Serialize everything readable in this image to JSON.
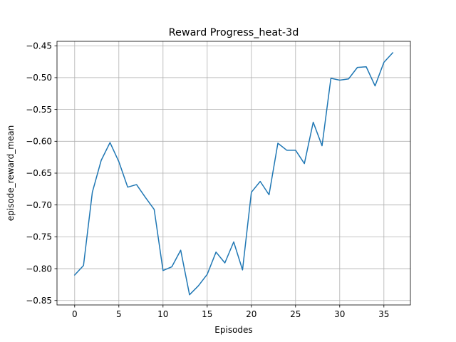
{
  "chart_data": {
    "type": "line",
    "title": "Reward Progress_heat-3d",
    "xlabel": "Episodes",
    "ylabel": "episode_reward_mean",
    "xlim": [
      -2,
      38
    ],
    "ylim": [
      -0.857,
      -0.443
    ],
    "xticks": [
      0,
      5,
      10,
      15,
      20,
      25,
      30,
      35
    ],
    "xtick_labels": [
      "0",
      "5",
      "10",
      "15",
      "20",
      "25",
      "30",
      "35"
    ],
    "yticks": [
      -0.85,
      -0.8,
      -0.75,
      -0.7,
      -0.65,
      -0.6,
      -0.55,
      -0.5,
      -0.45
    ],
    "ytick_labels": [
      "−0.85",
      "−0.80",
      "−0.75",
      "−0.70",
      "−0.65",
      "−0.60",
      "−0.55",
      "−0.50",
      "−0.45"
    ],
    "grid": true,
    "series": [
      {
        "color": "#1f77b4",
        "x": [
          0,
          1,
          2,
          3,
          4,
          5,
          6,
          7,
          8,
          9,
          10,
          11,
          12,
          13,
          14,
          15,
          16,
          17,
          18,
          19,
          20,
          21,
          22,
          23,
          24,
          25,
          26,
          27,
          28,
          29,
          30,
          31,
          32,
          33,
          34,
          35,
          36
        ],
        "y": [
          -0.81,
          -0.795,
          -0.68,
          -0.63,
          -0.602,
          -0.632,
          -0.672,
          -0.668,
          -0.688,
          -0.707,
          -0.803,
          -0.797,
          -0.771,
          -0.841,
          -0.827,
          -0.809,
          -0.774,
          -0.791,
          -0.758,
          -0.802,
          -0.68,
          -0.663,
          -0.684,
          -0.603,
          -0.614,
          -0.614,
          -0.635,
          -0.57,
          -0.607,
          -0.501,
          -0.504,
          -0.502,
          -0.484,
          -0.483,
          -0.513,
          -0.476,
          -0.461
        ]
      }
    ]
  }
}
